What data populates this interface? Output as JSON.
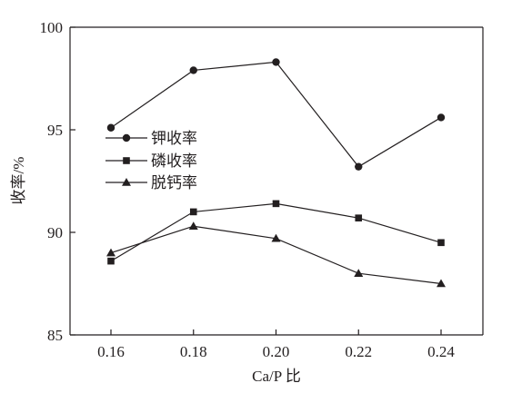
{
  "chart_data": {
    "type": "line",
    "x": [
      0.16,
      0.18,
      0.2,
      0.22,
      0.24
    ],
    "x_tick_labels": [
      "0.16",
      "0.18",
      "0.20",
      "0.22",
      "0.24"
    ],
    "xlabel": "Ca/P 比",
    "ylabel": "收率/%",
    "ylim": [
      85,
      100
    ],
    "y_ticks": [
      85,
      90,
      95,
      100
    ],
    "y_tick_labels": [
      "85",
      "90",
      "95",
      "100"
    ],
    "grid": false,
    "legend_position": "left",
    "series": [
      {
        "name": "钾收率",
        "marker": "circle",
        "values": [
          95.1,
          97.9,
          98.3,
          93.2,
          95.6
        ]
      },
      {
        "name": "磷收率",
        "marker": "square",
        "values": [
          88.6,
          91.0,
          91.4,
          90.7,
          89.5
        ]
      },
      {
        "name": "脱钙率",
        "marker": "triangle",
        "values": [
          89.0,
          90.3,
          89.7,
          88.0,
          87.5
        ]
      }
    ],
    "colors": {
      "ink": "#231f20"
    }
  }
}
